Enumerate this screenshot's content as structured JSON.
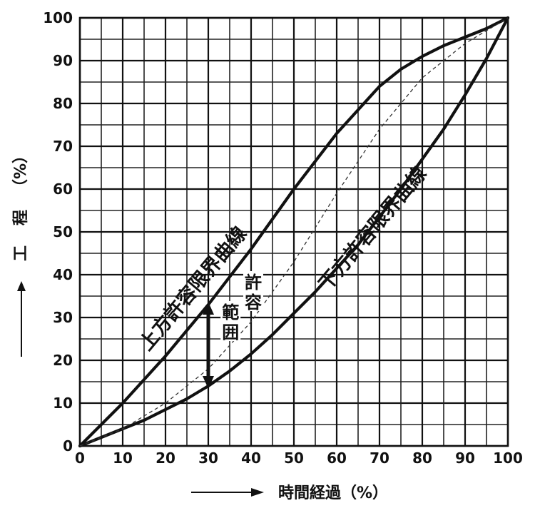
{
  "chart_data": {
    "type": "line",
    "xlabel": "時間経過（%）",
    "ylabel_chars": [
      "工",
      "程",
      "（%）"
    ],
    "xlim": [
      0,
      100
    ],
    "ylim": [
      0,
      100
    ],
    "x_ticks": [
      "0",
      "10",
      "20",
      "30",
      "40",
      "50",
      "60",
      "70",
      "80",
      "90",
      "100"
    ],
    "y_ticks": [
      "0",
      "10",
      "20",
      "30",
      "40",
      "50",
      "60",
      "70",
      "80",
      "90",
      "100"
    ],
    "grid": true,
    "series": [
      {
        "name": "上方許容限界曲線",
        "style": "solid",
        "x": [
          0,
          5,
          10,
          15,
          20,
          25,
          30,
          35,
          40,
          45,
          50,
          55,
          60,
          65,
          70,
          75,
          80,
          85,
          90,
          95,
          100
        ],
        "y": [
          0,
          5,
          10,
          15.5,
          21,
          27,
          33,
          39.5,
          46,
          53,
          60,
          66.5,
          73,
          78.5,
          84,
          88,
          91,
          93.5,
          95.5,
          97.5,
          100
        ]
      },
      {
        "name": "下方許容限界曲線",
        "style": "solid",
        "x": [
          0,
          5,
          10,
          15,
          20,
          25,
          30,
          35,
          40,
          45,
          50,
          55,
          60,
          65,
          70,
          75,
          80,
          85,
          90,
          95,
          100
        ],
        "y": [
          0,
          2,
          4,
          6,
          8.5,
          11,
          14,
          17.5,
          21.5,
          26,
          31,
          36,
          41.5,
          47,
          53.5,
          60,
          67,
          74,
          82,
          90.5,
          100
        ]
      },
      {
        "style": "dashed",
        "x": [
          0,
          10,
          20,
          30,
          40,
          50,
          60,
          70,
          80,
          90,
          100
        ],
        "y": [
          0,
          4,
          10,
          18,
          29,
          43,
          59,
          74,
          86,
          94,
          100
        ]
      }
    ],
    "annotations": {
      "range_label_left": "範囲",
      "range_label_right": "許容",
      "range_arrow_x": 30,
      "range_arrow_y": [
        14,
        33
      ]
    }
  }
}
